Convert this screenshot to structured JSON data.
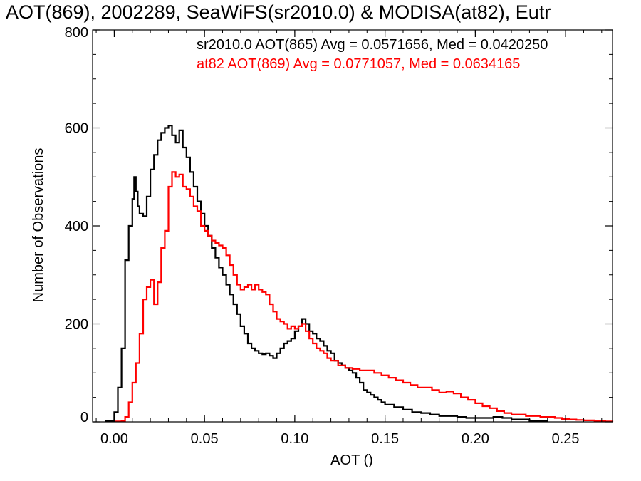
{
  "chart_data": {
    "type": "line",
    "title": "AOT(869), 2002289, SeaWiFS(sr2010.0) & MODISA(at82), Eutr",
    "xlabel": "AOT ()",
    "ylabel": "Number of Observations",
    "xlim": [
      -0.012,
      0.276
    ],
    "ylim": [
      0,
      800
    ],
    "xticks": [
      0.0,
      0.05,
      0.1,
      0.15,
      0.2,
      0.25
    ],
    "xtick_labels": [
      "0.00",
      "0.05",
      "0.10",
      "0.15",
      "0.20",
      "0.25"
    ],
    "yticks": [
      0,
      200,
      400,
      600,
      800
    ],
    "ytick_labels": [
      "0",
      "200",
      "400",
      "600",
      "800"
    ],
    "legend_position": "top-right",
    "series": [
      {
        "label": "sr2010.0 AOT(865) Avg = 0.0571656, Med = 0.0420250",
        "color": "#000000",
        "step": "post",
        "points": [
          [
            -0.005,
            2
          ],
          [
            0.0,
            20
          ],
          [
            0.002,
            70
          ],
          [
            0.004,
            150
          ],
          [
            0.006,
            330
          ],
          [
            0.008,
            400
          ],
          [
            0.01,
            455
          ],
          [
            0.011,
            500
          ],
          [
            0.012,
            470
          ],
          [
            0.013,
            440
          ],
          [
            0.014,
            425
          ],
          [
            0.016,
            420
          ],
          [
            0.018,
            460
          ],
          [
            0.02,
            515
          ],
          [
            0.022,
            545
          ],
          [
            0.024,
            575
          ],
          [
            0.026,
            590
          ],
          [
            0.028,
            600
          ],
          [
            0.03,
            605
          ],
          [
            0.032,
            585
          ],
          [
            0.034,
            570
          ],
          [
            0.036,
            595
          ],
          [
            0.038,
            560
          ],
          [
            0.04,
            540
          ],
          [
            0.042,
            510
          ],
          [
            0.044,
            480
          ],
          [
            0.046,
            450
          ],
          [
            0.048,
            425
          ],
          [
            0.05,
            400
          ],
          [
            0.052,
            380
          ],
          [
            0.054,
            355
          ],
          [
            0.056,
            335
          ],
          [
            0.058,
            315
          ],
          [
            0.06,
            300
          ],
          [
            0.062,
            280
          ],
          [
            0.064,
            260
          ],
          [
            0.066,
            240
          ],
          [
            0.068,
            220
          ],
          [
            0.07,
            195
          ],
          [
            0.072,
            180
          ],
          [
            0.074,
            160
          ],
          [
            0.076,
            150
          ],
          [
            0.078,
            145
          ],
          [
            0.08,
            140
          ],
          [
            0.082,
            138
          ],
          [
            0.084,
            140
          ],
          [
            0.086,
            135
          ],
          [
            0.088,
            130
          ],
          [
            0.09,
            140
          ],
          [
            0.092,
            150
          ],
          [
            0.094,
            160
          ],
          [
            0.096,
            165
          ],
          [
            0.098,
            170
          ],
          [
            0.1,
            185
          ],
          [
            0.102,
            195
          ],
          [
            0.104,
            210
          ],
          [
            0.106,
            200
          ],
          [
            0.108,
            185
          ],
          [
            0.11,
            180
          ],
          [
            0.112,
            170
          ],
          [
            0.114,
            165
          ],
          [
            0.116,
            155
          ],
          [
            0.118,
            145
          ],
          [
            0.12,
            140
          ],
          [
            0.122,
            125
          ],
          [
            0.124,
            120
          ],
          [
            0.126,
            115
          ],
          [
            0.128,
            110
          ],
          [
            0.13,
            105
          ],
          [
            0.132,
            100
          ],
          [
            0.134,
            90
          ],
          [
            0.136,
            80
          ],
          [
            0.138,
            65
          ],
          [
            0.14,
            60
          ],
          [
            0.142,
            55
          ],
          [
            0.144,
            50
          ],
          [
            0.146,
            45
          ],
          [
            0.148,
            40
          ],
          [
            0.15,
            35
          ],
          [
            0.155,
            30
          ],
          [
            0.16,
            25
          ],
          [
            0.165,
            20
          ],
          [
            0.17,
            18
          ],
          [
            0.175,
            15
          ],
          [
            0.18,
            12
          ],
          [
            0.185,
            12
          ],
          [
            0.19,
            10
          ],
          [
            0.195,
            8
          ],
          [
            0.2,
            8
          ],
          [
            0.205,
            8
          ],
          [
            0.21,
            10
          ],
          [
            0.215,
            8
          ],
          [
            0.22,
            5
          ],
          [
            0.23,
            2
          ],
          [
            0.24,
            0
          ]
        ]
      },
      {
        "label": "at82 AOT(869) Avg = 0.0771057, Med = 0.0634165",
        "color": "#ff0000",
        "step": "post",
        "points": [
          [
            0.0,
            1
          ],
          [
            0.004,
            2
          ],
          [
            0.006,
            10
          ],
          [
            0.008,
            40
          ],
          [
            0.01,
            80
          ],
          [
            0.012,
            120
          ],
          [
            0.014,
            180
          ],
          [
            0.016,
            250
          ],
          [
            0.018,
            275
          ],
          [
            0.02,
            290
          ],
          [
            0.022,
            240
          ],
          [
            0.024,
            285
          ],
          [
            0.026,
            355
          ],
          [
            0.028,
            390
          ],
          [
            0.03,
            480
          ],
          [
            0.032,
            510
          ],
          [
            0.034,
            500
          ],
          [
            0.036,
            505
          ],
          [
            0.038,
            480
          ],
          [
            0.04,
            475
          ],
          [
            0.042,
            460
          ],
          [
            0.044,
            440
          ],
          [
            0.046,
            430
          ],
          [
            0.048,
            400
          ],
          [
            0.05,
            390
          ],
          [
            0.052,
            380
          ],
          [
            0.054,
            370
          ],
          [
            0.056,
            365
          ],
          [
            0.058,
            360
          ],
          [
            0.06,
            355
          ],
          [
            0.062,
            340
          ],
          [
            0.064,
            320
          ],
          [
            0.066,
            300
          ],
          [
            0.068,
            280
          ],
          [
            0.07,
            270
          ],
          [
            0.072,
            275
          ],
          [
            0.074,
            280
          ],
          [
            0.076,
            270
          ],
          [
            0.078,
            280
          ],
          [
            0.08,
            270
          ],
          [
            0.082,
            265
          ],
          [
            0.084,
            260
          ],
          [
            0.086,
            240
          ],
          [
            0.088,
            225
          ],
          [
            0.09,
            210
          ],
          [
            0.092,
            205
          ],
          [
            0.094,
            200
          ],
          [
            0.096,
            190
          ],
          [
            0.098,
            195
          ],
          [
            0.1,
            190
          ],
          [
            0.102,
            195
          ],
          [
            0.104,
            200
          ],
          [
            0.106,
            185
          ],
          [
            0.108,
            170
          ],
          [
            0.11,
            160
          ],
          [
            0.112,
            150
          ],
          [
            0.114,
            145
          ],
          [
            0.116,
            140
          ],
          [
            0.118,
            130
          ],
          [
            0.12,
            125
          ],
          [
            0.124,
            115
          ],
          [
            0.128,
            110
          ],
          [
            0.132,
            108
          ],
          [
            0.136,
            105
          ],
          [
            0.14,
            105
          ],
          [
            0.144,
            100
          ],
          [
            0.148,
            95
          ],
          [
            0.152,
            90
          ],
          [
            0.156,
            85
          ],
          [
            0.16,
            80
          ],
          [
            0.164,
            75
          ],
          [
            0.168,
            70
          ],
          [
            0.172,
            70
          ],
          [
            0.176,
            65
          ],
          [
            0.18,
            60
          ],
          [
            0.184,
            62
          ],
          [
            0.188,
            58
          ],
          [
            0.192,
            50
          ],
          [
            0.196,
            45
          ],
          [
            0.2,
            38
          ],
          [
            0.204,
            32
          ],
          [
            0.208,
            28
          ],
          [
            0.212,
            22
          ],
          [
            0.216,
            18
          ],
          [
            0.22,
            15
          ],
          [
            0.224,
            15
          ],
          [
            0.228,
            12
          ],
          [
            0.232,
            12
          ],
          [
            0.236,
            10
          ],
          [
            0.24,
            10
          ],
          [
            0.244,
            8
          ],
          [
            0.248,
            6
          ],
          [
            0.252,
            5
          ],
          [
            0.256,
            4
          ],
          [
            0.26,
            3
          ],
          [
            0.266,
            2
          ],
          [
            0.272,
            1
          ],
          [
            0.276,
            0
          ]
        ]
      }
    ]
  }
}
